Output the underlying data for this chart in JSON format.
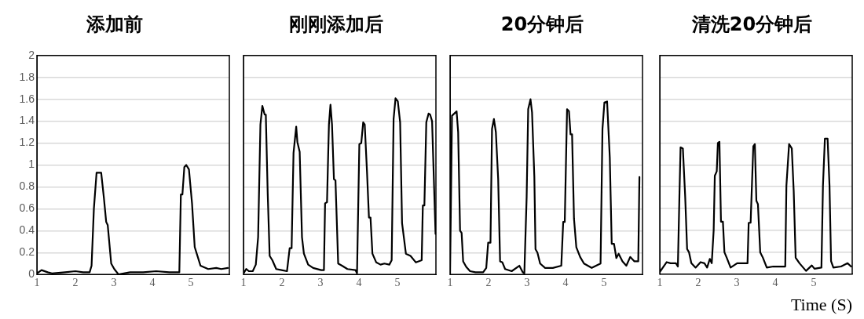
{
  "chart_data": [
    {
      "type": "line",
      "title": "添加前",
      "color": "#000000",
      "xlim": [
        1,
        6
      ],
      "xticks": [
        1,
        2,
        3,
        4,
        5
      ],
      "ylim": [
        0,
        2
      ],
      "yticks": [
        0,
        0.2,
        0.4,
        0.6,
        0.8,
        1,
        1.2,
        1.4,
        1.6,
        1.8,
        2
      ],
      "grid": "y",
      "x": [
        1.0,
        1.12,
        1.28,
        1.39,
        1.73,
        2.0,
        2.2,
        2.37,
        2.42,
        2.48,
        2.55,
        2.67,
        2.74,
        2.8,
        2.84,
        2.93,
        3.01,
        3.12,
        3.42,
        3.76,
        4.1,
        4.44,
        4.7,
        4.74,
        4.78,
        4.83,
        4.88,
        4.95,
        5.03,
        5.1,
        5.18,
        5.25,
        5.45,
        5.66,
        5.79,
        5.96
      ],
      "values": [
        0.01,
        0.04,
        0.02,
        0.01,
        0.02,
        0.03,
        0.02,
        0.02,
        0.08,
        0.6,
        0.93,
        0.93,
        0.7,
        0.48,
        0.45,
        0.1,
        0.05,
        0,
        0.02,
        0.02,
        0.03,
        0.02,
        0.02,
        0.73,
        0.73,
        0.98,
        1.0,
        0.96,
        0.65,
        0.25,
        0.16,
        0.08,
        0.05,
        0.06,
        0.05,
        0.06
      ]
    },
    {
      "type": "line",
      "title": "刚刚添加后",
      "color": "#000000",
      "xlim": [
        1,
        6
      ],
      "xticks": [
        1,
        2,
        3,
        4,
        5
      ],
      "ylim": [
        0,
        2
      ],
      "yticks": [
        0,
        0.2,
        0.4,
        0.6,
        0.8,
        1,
        1.2,
        1.4,
        1.6,
        1.8,
        2
      ],
      "grid": "y",
      "tick_labels": "x",
      "x": [
        1.0,
        1.07,
        1.14,
        1.24,
        1.32,
        1.38,
        1.44,
        1.49,
        1.55,
        1.58,
        1.63,
        1.68,
        1.75,
        1.85,
        1.99,
        2.13,
        2.2,
        2.25,
        2.3,
        2.37,
        2.4,
        2.46,
        2.52,
        2.57,
        2.68,
        2.81,
        3.02,
        3.09,
        3.12,
        3.17,
        3.22,
        3.26,
        3.3,
        3.35,
        3.39,
        3.46,
        3.56,
        3.7,
        3.91,
        3.95,
        4.01,
        4.06,
        4.11,
        4.15,
        4.21,
        4.26,
        4.3,
        4.35,
        4.45,
        4.56,
        4.66,
        4.79,
        4.85,
        4.9,
        4.95,
        5.01,
        5.07,
        5.12,
        5.17,
        5.22,
        5.34,
        5.48,
        5.63,
        5.66,
        5.7,
        5.75,
        5.81,
        5.85,
        5.9,
        5.99
      ],
      "values": [
        0.01,
        0.05,
        0.03,
        0.03,
        0.09,
        0.34,
        1.37,
        1.54,
        1.46,
        1.46,
        0.73,
        0.17,
        0.13,
        0.05,
        0.04,
        0.03,
        0.24,
        0.24,
        1.11,
        1.35,
        1.21,
        1.12,
        0.34,
        0.19,
        0.09,
        0.06,
        0.04,
        0.04,
        0.65,
        0.66,
        1.37,
        1.55,
        1.37,
        0.87,
        0.86,
        0.1,
        0.08,
        0.05,
        0.04,
        0.01,
        1.19,
        1.2,
        1.39,
        1.37,
        0.93,
        0.52,
        0.52,
        0.19,
        0.11,
        0.09,
        0.1,
        0.09,
        0.13,
        1.42,
        1.61,
        1.58,
        1.39,
        0.47,
        0.33,
        0.19,
        0.17,
        0.11,
        0.13,
        0.63,
        0.63,
        1.39,
        1.47,
        1.46,
        1.4,
        0.37
      ]
    },
    {
      "type": "line",
      "title": "20分钟后",
      "color": "#000000",
      "xlim": [
        1,
        6
      ],
      "xticks": [
        1,
        2,
        3,
        4,
        5
      ],
      "ylim": [
        0,
        2
      ],
      "yticks": [
        0,
        0.2,
        0.4,
        0.6,
        0.8,
        1,
        1.2,
        1.4,
        1.6,
        1.8,
        2
      ],
      "grid": "y",
      "tick_labels": "x",
      "x": [
        1.0,
        1.05,
        1.11,
        1.17,
        1.21,
        1.26,
        1.3,
        1.34,
        1.42,
        1.52,
        1.66,
        1.86,
        1.94,
        1.99,
        2.05,
        2.09,
        2.14,
        2.19,
        2.25,
        2.3,
        2.36,
        2.43,
        2.6,
        2.8,
        2.89,
        2.93,
        2.99,
        3.03,
        3.09,
        3.13,
        3.19,
        3.22,
        3.27,
        3.34,
        3.47,
        3.67,
        3.89,
        3.94,
        3.98,
        4.04,
        4.09,
        4.13,
        4.17,
        4.22,
        4.28,
        4.38,
        4.48,
        4.68,
        4.91,
        4.96,
        5.01,
        5.08,
        5.15,
        5.2,
        5.26,
        5.32,
        5.38,
        5.48,
        5.58,
        5.68,
        5.79,
        5.89,
        5.92
      ],
      "values": [
        0,
        1.45,
        1.47,
        1.49,
        1.3,
        0.4,
        0.38,
        0.12,
        0.07,
        0.03,
        0.02,
        0.02,
        0.06,
        0.29,
        0.29,
        1.33,
        1.42,
        1.3,
        0.87,
        0.12,
        0.11,
        0.05,
        0.03,
        0.08,
        0.02,
        0.01,
        0.71,
        1.51,
        1.6,
        1.48,
        0.89,
        0.23,
        0.2,
        0.1,
        0.06,
        0.06,
        0.08,
        0.48,
        0.48,
        1.51,
        1.49,
        1.28,
        1.28,
        0.51,
        0.25,
        0.16,
        0.1,
        0.06,
        0.1,
        1.33,
        1.57,
        1.58,
        1.07,
        0.28,
        0.28,
        0.15,
        0.19,
        0.12,
        0.08,
        0.16,
        0.12,
        0.12,
        0.89
      ]
    },
    {
      "type": "line",
      "title": "清洗20分钟后",
      "xlabel": "Time (S)",
      "color": "#000000",
      "xlim": [
        1,
        6
      ],
      "xticks": [
        1,
        2,
        3,
        4,
        5
      ],
      "ylim": [
        0,
        2
      ],
      "yticks": [
        0,
        0.2,
        0.4,
        0.6,
        0.8,
        1,
        1.2,
        1.4,
        1.6,
        1.8,
        2
      ],
      "grid": "y",
      "tick_labels": "x",
      "x": [
        1.0,
        1.08,
        1.18,
        1.28,
        1.42,
        1.47,
        1.51,
        1.54,
        1.6,
        1.66,
        1.71,
        1.76,
        1.82,
        1.93,
        2.06,
        2.16,
        2.23,
        2.3,
        2.35,
        2.4,
        2.43,
        2.48,
        2.51,
        2.55,
        2.59,
        2.64,
        2.68,
        2.74,
        2.84,
        3.01,
        3.28,
        3.31,
        3.36,
        3.43,
        3.47,
        3.51,
        3.55,
        3.61,
        3.68,
        3.78,
        3.95,
        4.26,
        4.29,
        4.36,
        4.43,
        4.48,
        4.53,
        4.63,
        4.8,
        4.95,
        5.02,
        5.2,
        5.24,
        5.29,
        5.36,
        5.41,
        5.45,
        5.51,
        5.71,
        5.88,
        5.97
      ],
      "values": [
        0.02,
        0.06,
        0.11,
        0.1,
        0.1,
        0.07,
        0.71,
        1.16,
        1.15,
        0.71,
        0.23,
        0.2,
        0.1,
        0.06,
        0.11,
        0.1,
        0.06,
        0.14,
        0.1,
        0.4,
        0.9,
        0.94,
        1.2,
        1.21,
        0.48,
        0.48,
        0.2,
        0.15,
        0.06,
        0.1,
        0.1,
        0.47,
        0.47,
        1.17,
        1.19,
        0.67,
        0.64,
        0.2,
        0.15,
        0.06,
        0.07,
        0.07,
        0.81,
        1.19,
        1.15,
        0.76,
        0.15,
        0.1,
        0.03,
        0.08,
        0.05,
        0.06,
        0.81,
        1.24,
        1.24,
        0.81,
        0.12,
        0.06,
        0.07,
        0.1,
        0.07
      ]
    }
  ]
}
